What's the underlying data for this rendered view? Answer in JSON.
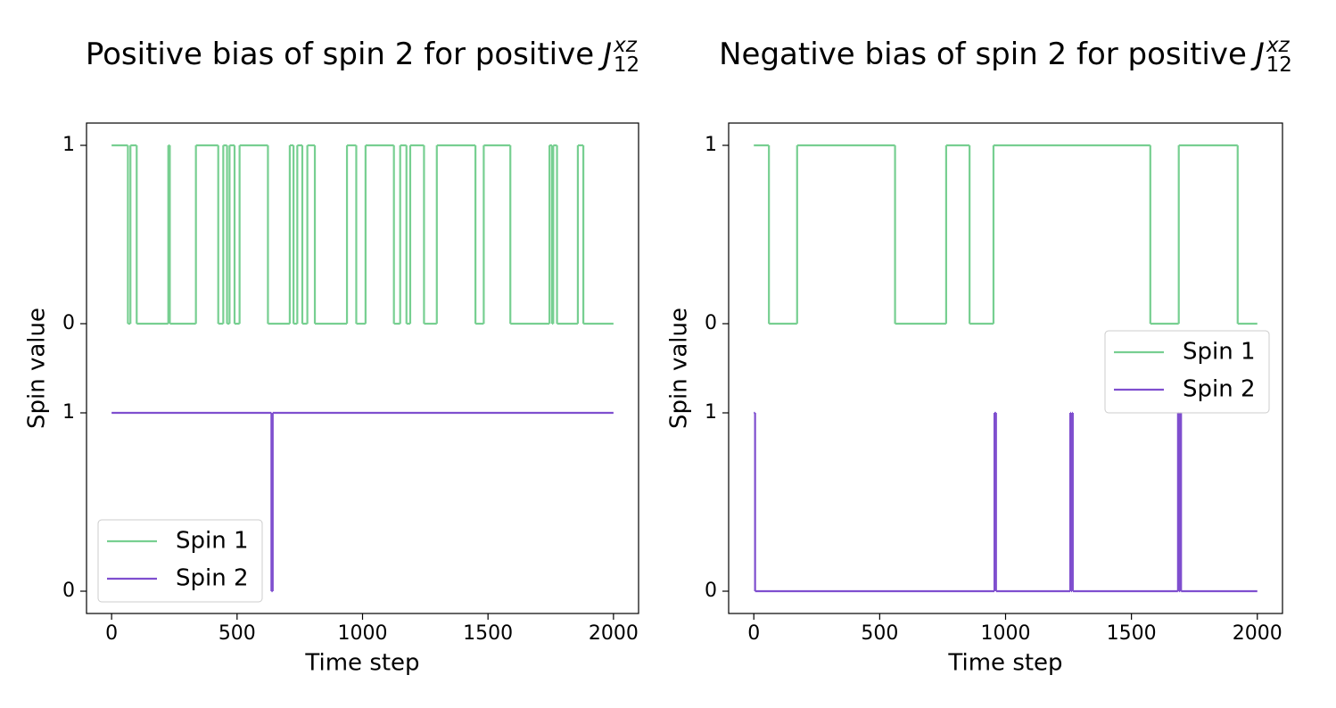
{
  "chart_data": [
    {
      "type": "line",
      "drawstyle": "steps-post",
      "title": "Positive bias of spin 2 for positive",
      "title_symbol": "J",
      "title_superscript": "xz",
      "title_subscript": "12",
      "xlabel": "Time step",
      "ylabel": "Spin value",
      "xlim": [
        -100,
        2100
      ],
      "ylim": [
        -0.125,
        2.625
      ],
      "xticks": [
        0,
        500,
        1000,
        1500,
        2000
      ],
      "yticks": [
        0,
        1,
        {
          "value": 1.5,
          "label": "0"
        },
        {
          "value": 2.5,
          "label": "1"
        }
      ],
      "legend_loc": "lower left",
      "series": [
        {
          "name": "Spin 1",
          "color": "#77cf91",
          "x": [
            0,
            65,
            75,
            100,
            226,
            232,
            336,
            425,
            445,
            460,
            470,
            490,
            510,
            623,
            710,
            725,
            740,
            760,
            780,
            810,
            938,
            975,
            1012,
            1125,
            1150,
            1175,
            1190,
            1245,
            1296,
            1450,
            1483,
            1589,
            1745,
            1755,
            1760,
            1775,
            1858,
            1880,
            2000
          ],
          "values": [
            2.5,
            1.5,
            2.5,
            1.5,
            2.5,
            1.5,
            2.5,
            1.5,
            2.5,
            1.5,
            2.5,
            1.5,
            2.5,
            1.5,
            2.5,
            1.5,
            2.5,
            1.5,
            2.5,
            1.5,
            2.5,
            1.5,
            2.5,
            1.5,
            2.5,
            1.5,
            2.5,
            1.5,
            2.5,
            1.5,
            2.5,
            1.5,
            2.5,
            1.5,
            2.5,
            1.5,
            2.5,
            1.5,
            1.5
          ]
        },
        {
          "name": "Spin 2",
          "color": "#7f4fcf",
          "x": [
            0,
            637,
            642,
            2000
          ],
          "values": [
            1,
            0,
            1,
            1
          ]
        }
      ]
    },
    {
      "type": "line",
      "drawstyle": "steps-post",
      "title": "Negative bias of spin 2 for positive",
      "title_symbol": "J",
      "title_superscript": "xz",
      "title_subscript": "12",
      "xlabel": "Time step",
      "ylabel": "Spin value",
      "xlim": [
        -100,
        2100
      ],
      "ylim": [
        -0.125,
        2.625
      ],
      "xticks": [
        0,
        500,
        1000,
        1500,
        2000
      ],
      "yticks": [
        0,
        1,
        {
          "value": 1.5,
          "label": "0"
        },
        {
          "value": 2.5,
          "label": "1"
        }
      ],
      "legend_loc": "center right",
      "series": [
        {
          "name": "Spin 1",
          "color": "#77cf91",
          "x": [
            0,
            60,
            172,
            561,
            764,
            857,
            952,
            1575,
            1688,
            1922,
            2000
          ],
          "values": [
            2.5,
            1.5,
            2.5,
            1.5,
            2.5,
            1.5,
            2.5,
            1.5,
            2.5,
            1.5,
            1.5
          ]
        },
        {
          "name": "Spin 2",
          "color": "#7f4fcf",
          "x": [
            0,
            5,
            956,
            962,
            1257,
            1260,
            1264,
            1267,
            1685,
            1688,
            1694,
            1697,
            2000
          ],
          "values": [
            1,
            0,
            1,
            0,
            1,
            0,
            1,
            0,
            1,
            0,
            1,
            0,
            0
          ]
        }
      ]
    }
  ]
}
